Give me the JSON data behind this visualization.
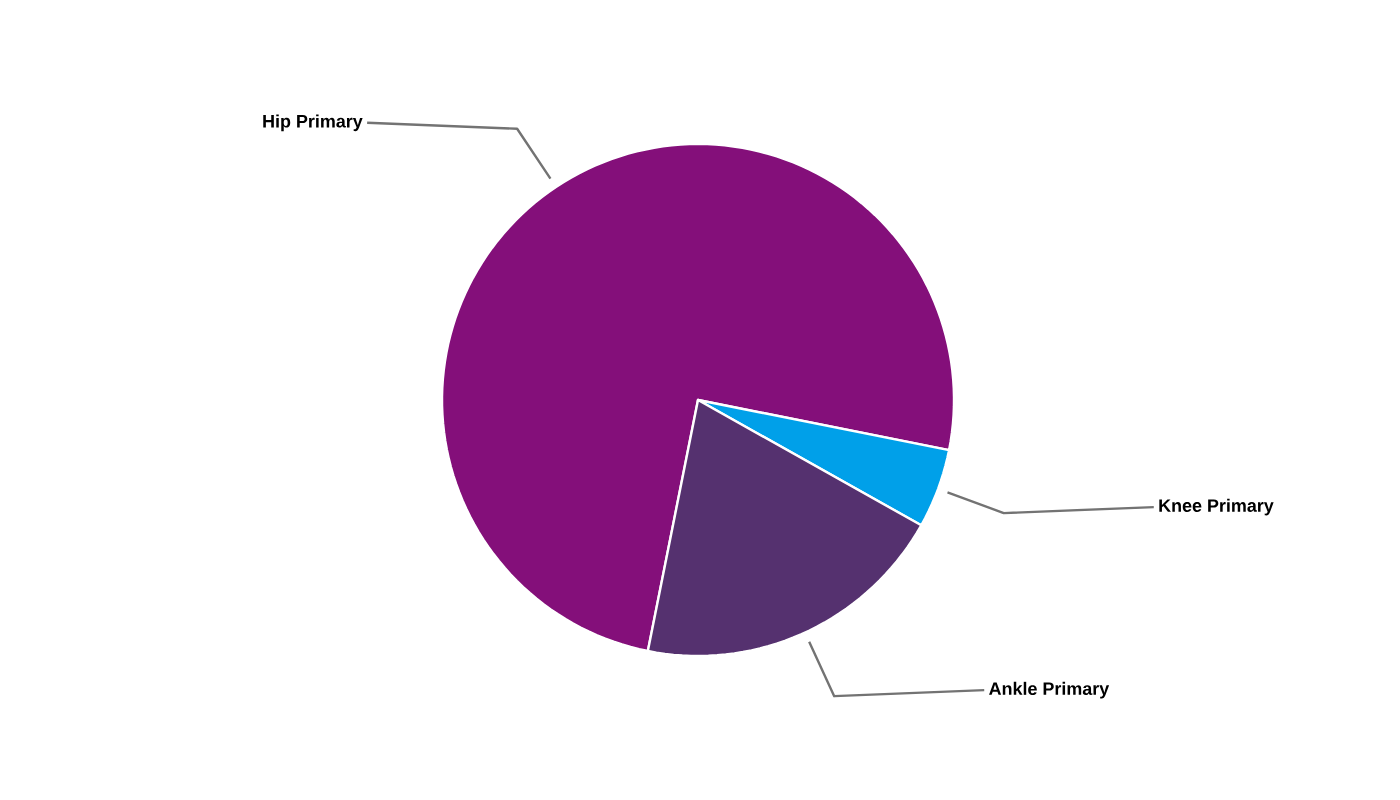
{
  "chart_data": {
    "type": "pie",
    "categories": [
      "Hip Primary",
      "Knee Primary",
      "Ankle Primary"
    ],
    "values": [
      75,
      5,
      20
    ],
    "colors": [
      "#840f7a",
      "#00a0e9",
      "#55316f"
    ]
  }
}
